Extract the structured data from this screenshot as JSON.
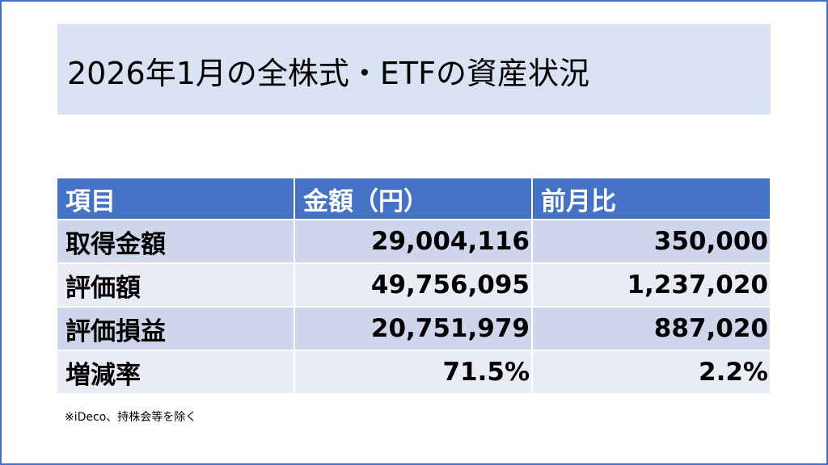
{
  "title": "2026年1月の全株式・ETFの資産状況",
  "table": {
    "headers": [
      "項目",
      "金額（円）",
      "前月比"
    ],
    "rows": [
      {
        "label": "取得金額",
        "amount": "29,004,116",
        "change": "350,000"
      },
      {
        "label": "評価額",
        "amount": "49,756,095",
        "change": "1,237,020"
      },
      {
        "label": "評価損益",
        "amount": "20,751,979",
        "change": "887,020"
      },
      {
        "label": "増減率",
        "amount": "71.5%",
        "change": "2.2%"
      }
    ]
  },
  "note": "※iDeco、持株会等を除く",
  "colors": {
    "header": "#4472c4",
    "row_dark": "#cfd5ea",
    "row_light": "#e9ebf5",
    "title_bg": "#dae3f3"
  }
}
